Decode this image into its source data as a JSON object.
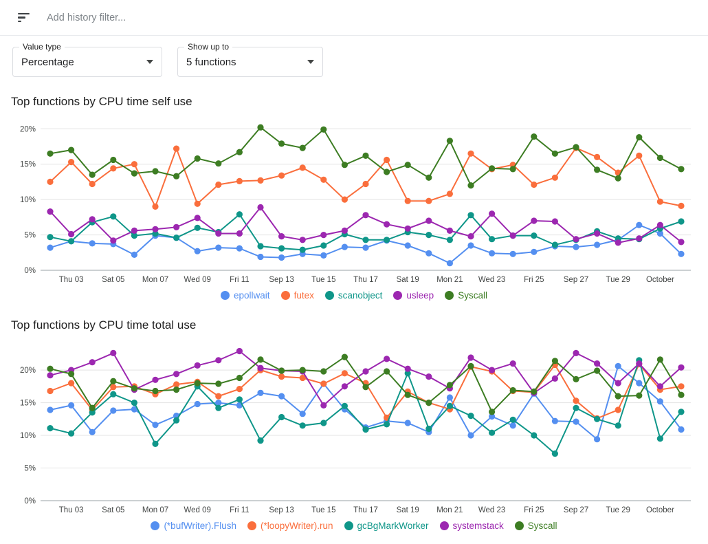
{
  "filter_bar": {
    "placeholder": "Add history filter..."
  },
  "controls": {
    "value_type": {
      "label": "Value type",
      "value": "Percentage"
    },
    "show_up_to": {
      "label": "Show up to",
      "value": "5 functions"
    }
  },
  "chart_data": [
    {
      "type": "line",
      "title": "Top functions by CPU time self use",
      "xlabel": "",
      "ylabel": "",
      "y_ticks": [
        0,
        5,
        10,
        15,
        20
      ],
      "y_tick_suffix": "%",
      "ylim": [
        0,
        21
      ],
      "grid": "horizontal",
      "legend_position": "bottom",
      "x_tick_labels": [
        "Thu 03",
        "Sat 05",
        "Mon 07",
        "Wed 09",
        "Fri 11",
        "Sep 13",
        "Tue 15",
        "Thu 17",
        "Sat 19",
        "Mon 21",
        "Wed 23",
        "Fri 25",
        "Sep 27",
        "Tue 29",
        "October"
      ],
      "series": [
        {
          "name": "epollwait",
          "color": "#548ff0",
          "values": [
            3.2,
            4.1,
            3.8,
            3.7,
            2.2,
            4.9,
            4.6,
            2.7,
            3.2,
            3.1,
            1.9,
            1.8,
            2.3,
            2.1,
            3.3,
            3.2,
            4.2,
            3.5,
            2.4,
            1.0,
            3.5,
            2.4,
            2.3,
            2.6,
            3.4,
            3.3,
            3.6,
            4.3,
            6.4,
            5.2,
            2.3
          ]
        },
        {
          "name": "futex",
          "color": "#fa6e3c",
          "values": [
            12.5,
            15.3,
            12.2,
            14.4,
            15.0,
            9.0,
            17.2,
            9.4,
            12.1,
            12.6,
            12.7,
            13.4,
            14.5,
            12.8,
            10.0,
            12.2,
            15.6,
            9.8,
            9.8,
            10.8,
            16.5,
            14.3,
            14.9,
            12.1,
            13.1,
            17.3,
            16.0,
            13.8,
            16.2,
            9.7,
            9.1
          ]
        },
        {
          "name": "scanobject",
          "color": "#0f9689",
          "values": [
            4.7,
            4.1,
            6.8,
            7.6,
            4.9,
            5.2,
            4.6,
            6.0,
            5.4,
            7.9,
            3.4,
            3.1,
            2.9,
            3.5,
            5.1,
            4.3,
            4.3,
            5.4,
            5.0,
            4.3,
            7.8,
            4.4,
            4.9,
            4.9,
            3.6,
            4.3,
            5.5,
            4.5,
            4.4,
            5.9,
            6.9
          ]
        },
        {
          "name": "usleep",
          "color": "#9c27b0",
          "values": [
            8.3,
            5.1,
            7.2,
            4.2,
            5.6,
            5.8,
            6.1,
            7.4,
            5.2,
            5.2,
            8.9,
            4.8,
            4.3,
            5.0,
            5.6,
            7.8,
            6.5,
            5.9,
            7.0,
            5.6,
            4.8,
            8.0,
            4.9,
            7.0,
            6.9,
            4.4,
            5.2,
            3.9,
            4.5,
            6.4,
            4.0
          ]
        },
        {
          "name": "Syscall",
          "color": "#3d7d23",
          "values": [
            16.5,
            17.0,
            13.5,
            15.6,
            13.7,
            14.0,
            13.3,
            15.8,
            15.1,
            16.7,
            20.2,
            17.9,
            17.3,
            19.9,
            14.9,
            16.2,
            13.9,
            14.9,
            13.1,
            18.3,
            12.0,
            14.4,
            14.3,
            18.9,
            16.5,
            17.4,
            14.2,
            13.0,
            18.8,
            15.9,
            14.3
          ]
        }
      ]
    },
    {
      "type": "line",
      "title": "Top functions by CPU time total use",
      "xlabel": "",
      "ylabel": "",
      "y_ticks": [
        0,
        5,
        10,
        15,
        20
      ],
      "y_tick_suffix": "%",
      "ylim": [
        0,
        23.8
      ],
      "grid": "horizontal",
      "legend_position": "bottom",
      "x_tick_labels": [
        "Thu 03",
        "Sat 05",
        "Mon 07",
        "Wed 09",
        "Fri 11",
        "Sep 13",
        "Tue 15",
        "Thu 17",
        "Sat 19",
        "Mon 21",
        "Wed 23",
        "Fri 25",
        "Sep 27",
        "Tue 29",
        "October"
      ],
      "series": [
        {
          "name": "(*bufWriter).Flush",
          "color": "#548ff0",
          "values": [
            13.9,
            14.6,
            10.5,
            13.8,
            14.0,
            11.6,
            13.0,
            14.8,
            15.0,
            14.6,
            16.5,
            16.0,
            13.3,
            17.9,
            14.0,
            11.2,
            12.2,
            11.9,
            10.5,
            15.8,
            10.0,
            12.9,
            11.5,
            16.4,
            12.2,
            12.1,
            9.4,
            20.6,
            18.0,
            15.2,
            10.9
          ]
        },
        {
          "name": "(*loopyWriter).run",
          "color": "#fa6e3c",
          "values": [
            16.8,
            18.0,
            13.9,
            17.4,
            17.5,
            16.3,
            17.8,
            18.2,
            16.0,
            17.1,
            20.0,
            19.0,
            18.8,
            17.9,
            19.5,
            18.0,
            12.7,
            16.7,
            15.0,
            14.0,
            20.5,
            19.8,
            16.8,
            16.6,
            20.8,
            15.3,
            12.6,
            13.9,
            20.9,
            17.0,
            17.5
          ]
        },
        {
          "name": "gcBgMarkWorker",
          "color": "#0f9689",
          "values": [
            11.1,
            10.3,
            13.5,
            16.3,
            15.0,
            8.7,
            12.3,
            17.5,
            14.2,
            15.5,
            9.2,
            12.8,
            11.5,
            11.9,
            14.5,
            10.9,
            11.7,
            19.5,
            11.0,
            14.5,
            13.0,
            10.4,
            12.4,
            10.0,
            7.2,
            14.2,
            12.5,
            11.5,
            21.5,
            9.5,
            13.6
          ]
        },
        {
          "name": "systemstack",
          "color": "#9c27b0",
          "values": [
            19.2,
            20.0,
            21.2,
            22.6,
            17.0,
            18.5,
            19.4,
            20.7,
            21.5,
            22.9,
            20.3,
            19.9,
            19.8,
            14.6,
            17.5,
            19.8,
            21.7,
            20.2,
            19.0,
            17.2,
            21.9,
            20.0,
            21.0,
            16.5,
            18.7,
            22.6,
            21.0,
            18.0,
            21.0,
            17.5,
            20.4
          ]
        },
        {
          "name": "Syscall",
          "color": "#3d7d23",
          "values": [
            20.2,
            19.4,
            14.2,
            18.3,
            17.2,
            16.8,
            17.0,
            18.0,
            17.9,
            18.8,
            21.6,
            19.9,
            20.0,
            19.8,
            22.0,
            17.4,
            19.8,
            16.2,
            15.0,
            17.7,
            20.6,
            13.6,
            16.9,
            16.7,
            21.4,
            18.6,
            19.9,
            16.0,
            16.1,
            21.6,
            16.2
          ]
        }
      ]
    }
  ]
}
